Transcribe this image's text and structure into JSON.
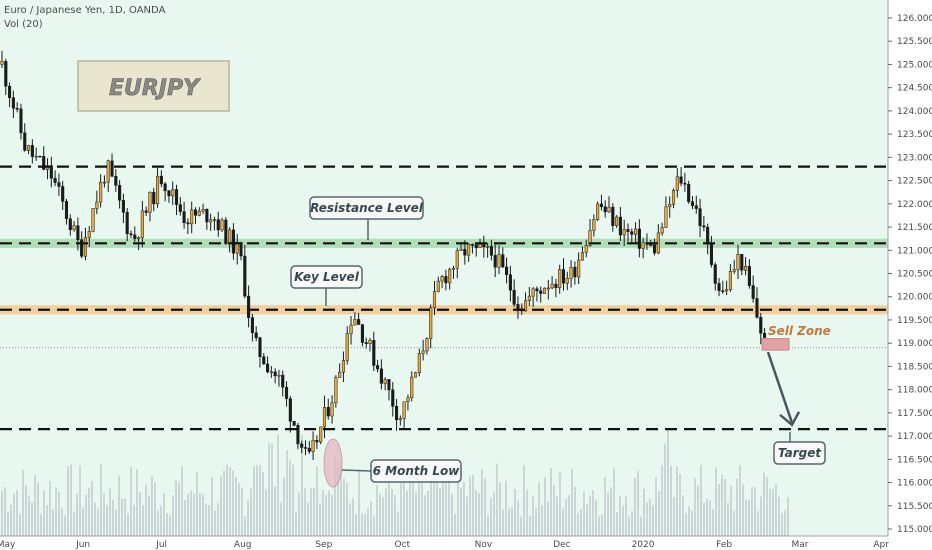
{
  "header": {
    "symbol": "Euro / Japanese Yen, 1D, OANDA",
    "volume_label": "Vol (20)"
  },
  "logo_text": "EURJPY",
  "colors": {
    "background": "#e8f8f1",
    "up_candle": "#e8a93a",
    "down_candle": "#1a1a1a",
    "resistance_band": "#9fd6a6",
    "key_band": "#f5c58c",
    "sell_zone": "#e0a3a3",
    "volume": "#b9bfc6",
    "arrow": "#4a5560"
  },
  "chart_data": {
    "type": "candlestick",
    "y_axis": {
      "ticks": [
        "126.000",
        "125.500",
        "125.000",
        "124.500",
        "124.000",
        "123.500",
        "123.000",
        "122.500",
        "122.000",
        "121.500",
        "121.000",
        "120.500",
        "120.000",
        "119.500",
        "119.000",
        "118.500",
        "118.000",
        "117.500",
        "117.000",
        "116.500",
        "116.000",
        "115.500",
        "115.000"
      ],
      "range": [
        114.95,
        126.3
      ]
    },
    "x_axis": {
      "labels": [
        "May",
        "Jun",
        "Jul",
        "Aug",
        "Sep",
        "Oct",
        "Nov",
        "Dec",
        "2020",
        "Feb",
        "Mar",
        "Apr"
      ]
    },
    "levels": [
      {
        "name": "upper-dashed-line",
        "price": 122.8,
        "style": "dashed"
      },
      {
        "name": "resistance-level",
        "price": 121.15,
        "band": [
          121.05,
          121.25
        ],
        "style": "dashed"
      },
      {
        "name": "key-level",
        "price": 119.72,
        "band": [
          119.62,
          119.82
        ],
        "style": "dashed"
      },
      {
        "name": "target-line",
        "price": 117.15,
        "style": "dashed"
      },
      {
        "name": "current-price-line",
        "price": 118.9,
        "style": "dotted"
      }
    ],
    "annotations": [
      {
        "name": "resistance-label",
        "text": "Resistance Level"
      },
      {
        "name": "key-level-label",
        "text": "Key Level"
      },
      {
        "name": "six-month-low-label",
        "text": "6 Month Low"
      },
      {
        "name": "sell-zone-label",
        "text": "Sell Zone"
      },
      {
        "name": "target-label",
        "text": "Target"
      }
    ],
    "sell_zone": {
      "price_range": [
        118.85,
        119.1
      ]
    },
    "target_price": 117.2,
    "price_path": [
      {
        "date": "2019-05-01",
        "price": 125.0
      },
      {
        "date": "2019-05-10",
        "price": 123.2
      },
      {
        "date": "2019-05-20",
        "price": 122.6
      },
      {
        "date": "2019-05-31",
        "price": 121.0
      },
      {
        "date": "2019-06-10",
        "price": 122.8
      },
      {
        "date": "2019-06-20",
        "price": 121.2
      },
      {
        "date": "2019-07-01",
        "price": 122.6
      },
      {
        "date": "2019-07-10",
        "price": 121.7
      },
      {
        "date": "2019-07-20",
        "price": 121.8
      },
      {
        "date": "2019-07-31",
        "price": 120.9
      },
      {
        "date": "2019-08-05",
        "price": 119.0
      },
      {
        "date": "2019-08-15",
        "price": 118.2
      },
      {
        "date": "2019-08-26",
        "price": 116.4
      },
      {
        "date": "2019-09-05",
        "price": 118.0
      },
      {
        "date": "2019-09-12",
        "price": 119.7
      },
      {
        "date": "2019-09-20",
        "price": 118.7
      },
      {
        "date": "2019-09-30",
        "price": 117.4
      },
      {
        "date": "2019-10-07",
        "price": 118.5
      },
      {
        "date": "2019-10-15",
        "price": 120.3
      },
      {
        "date": "2019-10-25",
        "price": 121.0
      },
      {
        "date": "2019-11-05",
        "price": 120.9
      },
      {
        "date": "2019-11-15",
        "price": 119.8
      },
      {
        "date": "2019-11-25",
        "price": 120.3
      },
      {
        "date": "2019-12-05",
        "price": 120.5
      },
      {
        "date": "2019-12-15",
        "price": 122.0
      },
      {
        "date": "2019-12-25",
        "price": 121.4
      },
      {
        "date": "2020-01-05",
        "price": 121.0
      },
      {
        "date": "2020-01-15",
        "price": 122.6
      },
      {
        "date": "2020-01-22",
        "price": 121.8
      },
      {
        "date": "2020-01-31",
        "price": 120.0
      },
      {
        "date": "2020-02-07",
        "price": 120.9
      },
      {
        "date": "2020-02-17",
        "price": 118.9
      }
    ]
  }
}
